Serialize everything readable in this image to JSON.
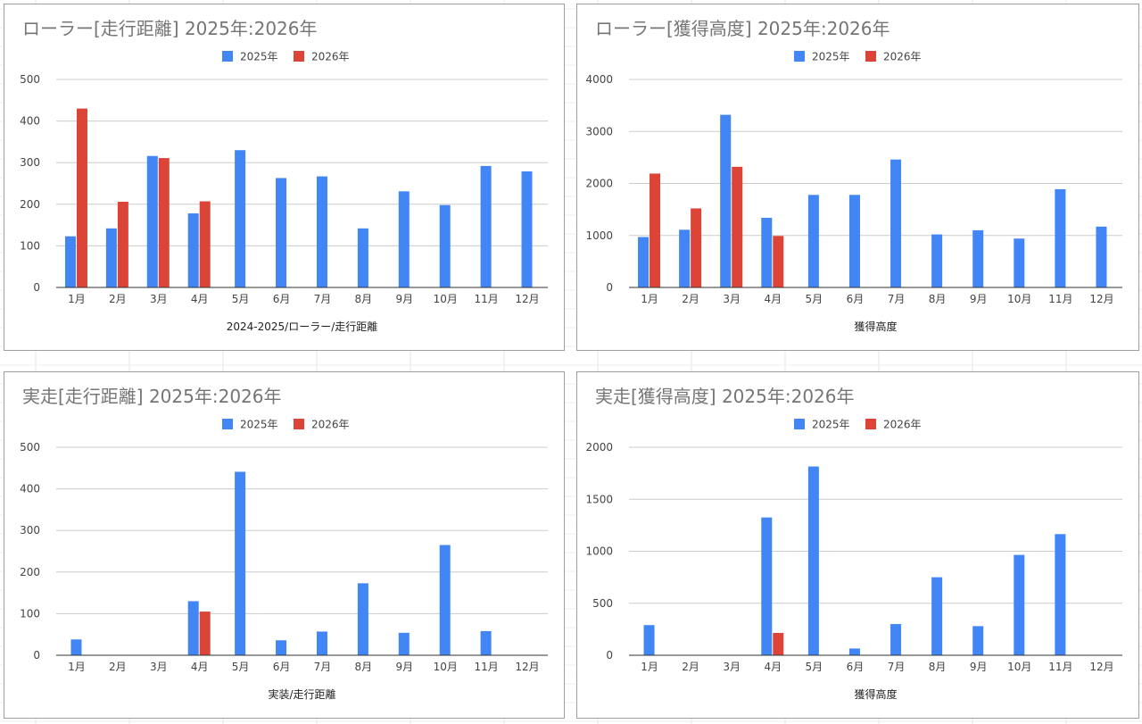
{
  "colors": {
    "series_2025": "#4285f4",
    "series_2026": "#db4437",
    "grid": "#cccccc",
    "axis": "#333333"
  },
  "months": [
    "1月",
    "2月",
    "3月",
    "4月",
    "5月",
    "6月",
    "7月",
    "8月",
    "9月",
    "10月",
    "11月",
    "12月"
  ],
  "chart_data": [
    {
      "type": "bar",
      "title": "ローラー[走行距離] 2025年:2026年",
      "xlabel": "2024-2025/ローラー/走行距離",
      "ylabel": "",
      "legend_position": "top",
      "ylim": [
        0,
        500
      ],
      "yticks": [
        0,
        100,
        200,
        300,
        400,
        500
      ],
      "grid": true,
      "series": [
        {
          "name": "2025年",
          "values": [
            123,
            142,
            316,
            178,
            330,
            263,
            267,
            142,
            231,
            198,
            292,
            279
          ]
        },
        {
          "name": "2026年",
          "values": [
            430,
            206,
            311,
            207,
            null,
            null,
            null,
            null,
            null,
            null,
            null,
            null
          ]
        }
      ]
    },
    {
      "type": "bar",
      "title": "ローラー[獲得高度] 2025年:2026年",
      "xlabel": "獲得高度",
      "ylabel": "",
      "legend_position": "top",
      "ylim": [
        0,
        4000
      ],
      "yticks": [
        0,
        1000,
        2000,
        3000,
        4000
      ],
      "grid": true,
      "series": [
        {
          "name": "2025年",
          "values": [
            970,
            1110,
            3320,
            1340,
            1780,
            1780,
            2460,
            1020,
            1100,
            940,
            1890,
            1170
          ]
        },
        {
          "name": "2026年",
          "values": [
            2190,
            1520,
            2320,
            990,
            null,
            null,
            null,
            null,
            null,
            null,
            null,
            null
          ]
        }
      ]
    },
    {
      "type": "bar",
      "title": "実走[走行距離] 2025年:2026年",
      "xlabel": "実装/走行距離",
      "ylabel": "",
      "legend_position": "top",
      "ylim": [
        0,
        500
      ],
      "yticks": [
        0,
        100,
        200,
        300,
        400,
        500
      ],
      "grid": true,
      "series": [
        {
          "name": "2025年",
          "values": [
            38,
            0,
            0,
            130,
            441,
            36,
            57,
            173,
            54,
            265,
            58,
            0
          ]
        },
        {
          "name": "2026年",
          "values": [
            null,
            null,
            null,
            105,
            null,
            null,
            null,
            null,
            null,
            null,
            null,
            null
          ]
        }
      ]
    },
    {
      "type": "bar",
      "title": "実走[獲得高度] 2025年:2026年",
      "xlabel": "獲得高度",
      "ylabel": "",
      "legend_position": "top",
      "ylim": [
        0,
        2000
      ],
      "yticks": [
        0,
        500,
        1000,
        1500,
        2000
      ],
      "grid": true,
      "series": [
        {
          "name": "2025年",
          "values": [
            290,
            0,
            0,
            1325,
            1815,
            65,
            300,
            750,
            280,
            965,
            1165,
            0
          ]
        },
        {
          "name": "2026年",
          "values": [
            null,
            null,
            null,
            215,
            null,
            null,
            null,
            null,
            null,
            null,
            null,
            null
          ]
        }
      ]
    }
  ]
}
